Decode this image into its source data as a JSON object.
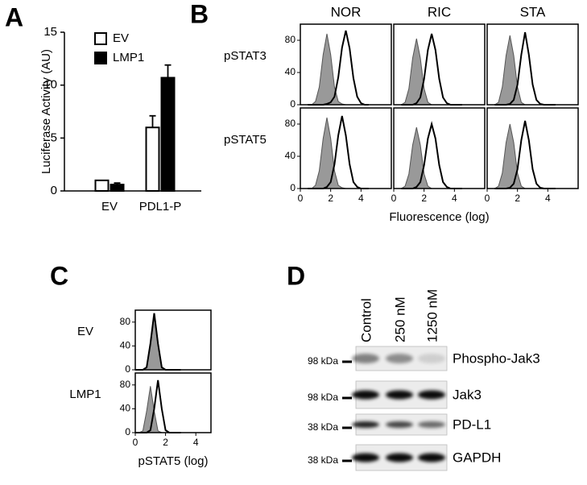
{
  "chart_data": [
    {
      "type": "bar",
      "panel_label": "A",
      "ylabel": "Luciferase Activity (AU)",
      "categories": [
        "EV",
        "PDL1-P"
      ],
      "series": [
        {
          "name": "EV",
          "color": "#ffffff",
          "values": [
            1.0,
            6.0
          ],
          "errors": [
            null,
            1.1
          ]
        },
        {
          "name": "LMP1",
          "color": "#000000",
          "values": [
            0.6,
            10.7
          ],
          "errors": [
            0.15,
            1.2
          ]
        }
      ],
      "ylim": [
        0,
        15
      ],
      "yticks": [
        0,
        5,
        10,
        15
      ]
    },
    {
      "type": "density",
      "panel_label": "B",
      "columns": [
        "NOR",
        "RIC",
        "STA"
      ],
      "rows": [
        "pSTAT3",
        "pSTAT5"
      ],
      "xlabel": "Fluorescence (log)",
      "control_color": "#999999",
      "sample_color": "#000000",
      "x": [
        0.5,
        0.75,
        1,
        1.25,
        1.5,
        1.75,
        2,
        2.25,
        2.5,
        2.75,
        3,
        3.25,
        3.5,
        3.75,
        4,
        4.25,
        4.5
      ],
      "panels": [
        [
          {
            "control": [
              0,
              0,
              4,
              22,
              62,
              88,
              62,
              22,
              4,
              1,
              0,
              0,
              0,
              0,
              0,
              0,
              0
            ],
            "sample": [
              0,
              0,
              0,
              0,
              0,
              1,
              3,
              10,
              34,
              71,
              92,
              70,
              33,
              10,
              2,
              0,
              0
            ]
          },
          {
            "control": [
              0,
              3,
              20,
              58,
              82,
              58,
              20,
              3,
              0,
              0,
              0,
              0,
              0,
              0,
              0,
              0,
              0
            ],
            "sample": [
              0,
              0,
              0,
              0,
              2,
              9,
              32,
              68,
              88,
              68,
              32,
              9,
              2,
              0,
              0,
              0,
              0
            ]
          },
          {
            "control": [
              0,
              3,
              22,
              61,
              86,
              61,
              22,
              3,
              0,
              0,
              0,
              0,
              0,
              0,
              0,
              0,
              0
            ],
            "sample": [
              0,
              0,
              0,
              0,
              1,
              6,
              25,
              62,
              90,
              62,
              25,
              6,
              1,
              0,
              0,
              0,
              0
            ]
          }
        ],
        [
          {
            "control": [
              0,
              0,
              4,
              22,
              62,
              88,
              62,
              22,
              4,
              1,
              0,
              0,
              0,
              0,
              0,
              0,
              0
            ],
            "sample": [
              0,
              0,
              0,
              0,
              0,
              2,
              8,
              30,
              66,
              90,
              66,
              30,
              8,
              2,
              0,
              0,
              0
            ]
          },
          {
            "control": [
              0,
              3,
              18,
              54,
              76,
              54,
              18,
              3,
              0,
              0,
              0,
              0,
              0,
              0,
              0,
              0,
              0
            ],
            "sample": [
              0,
              0,
              0,
              0,
              2,
              8,
              29,
              62,
              80,
              62,
              29,
              8,
              2,
              0,
              0,
              0,
              0
            ]
          },
          {
            "control": [
              0,
              3,
              19,
              57,
              80,
              57,
              19,
              3,
              0,
              0,
              0,
              0,
              0,
              0,
              0,
              0,
              0
            ],
            "sample": [
              0,
              0,
              0,
              0,
              1,
              6,
              24,
              60,
              84,
              60,
              24,
              6,
              1,
              0,
              0,
              0,
              0
            ]
          }
        ]
      ],
      "xlim": [
        0,
        6
      ],
      "ylim": [
        0,
        100
      ],
      "xticks": [
        0,
        2,
        4
      ],
      "yticks": [
        0,
        40,
        80
      ]
    },
    {
      "type": "density",
      "panel_label": "C",
      "rows": [
        "EV",
        "LMP1"
      ],
      "xlabel": "pSTAT5 (log)",
      "control_color": "#999999",
      "sample_color": "#000000",
      "x": [
        0,
        0.25,
        0.5,
        0.75,
        1,
        1.25,
        1.5,
        1.75,
        2,
        2.25,
        2.5,
        2.75,
        3
      ],
      "panels": [
        [
          {
            "control": [
              0,
              0,
              0,
              4,
              41,
              90,
              41,
              4,
              0,
              0,
              0,
              0,
              0
            ],
            "sample": [
              0,
              0,
              0,
              4,
              44,
              95,
              44,
              4,
              0,
              0,
              0,
              0,
              0
            ]
          }
        ],
        [
          {
            "control": [
              0,
              0,
              3,
              36,
              78,
              36,
              3,
              0,
              0,
              0,
              0,
              0,
              0
            ],
            "sample": [
              0,
              0,
              0,
              0,
              4,
              40,
              88,
              40,
              4,
              0,
              0,
              0,
              0
            ]
          }
        ]
      ],
      "xlim": [
        0,
        5
      ],
      "ylim": [
        0,
        100
      ],
      "xticks": [
        0,
        2,
        4
      ],
      "yticks": [
        0,
        40,
        80
      ]
    }
  ],
  "blot": {
    "panel_label": "D",
    "lanes": [
      "Control",
      "250 nM",
      "1250 nM"
    ],
    "rows": [
      {
        "marker": "98 kDa",
        "protein": "Phospho-Jak3"
      },
      {
        "marker": "98 kDa",
        "protein": "Jak3"
      },
      {
        "marker": "38 kDa",
        "protein": "PD-L1"
      },
      {
        "marker": "38 kDa",
        "protein": "GAPDH"
      }
    ]
  }
}
